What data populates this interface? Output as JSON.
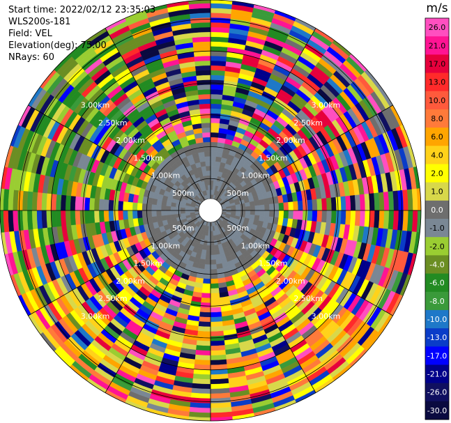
{
  "header": {
    "start_time": "Start time: 2022/02/12 23:35:03",
    "instrument": "WLS200s-181",
    "field": "Field: VEL",
    "elevation": "Elevation(deg): 75.00",
    "nrays": "NRays: 60"
  },
  "chart_data": {
    "type": "heatmap",
    "projection": "polar",
    "field": "VEL",
    "units": "m/s",
    "nrays": 60,
    "range_rings": [
      {
        "range_m": 500,
        "label": "500m"
      },
      {
        "range_m": 1000,
        "label": "1.00km"
      },
      {
        "range_m": 1500,
        "label": "1.50km"
      },
      {
        "range_m": 2000,
        "label": "2.00km"
      },
      {
        "range_m": 2500,
        "label": "2.50km"
      },
      {
        "range_m": 3000,
        "label": "3.00km"
      }
    ],
    "max_range_m": 3300,
    "blind_zone_m": 100,
    "spoke_angles_deg": [
      0,
      30,
      60,
      90,
      120,
      150,
      180,
      210,
      240,
      270,
      300,
      330
    ],
    "colorbar": {
      "title": "m/s",
      "ticks": [
        "26.0",
        "21.0",
        "17.0",
        "13.0",
        "10.0",
        "8.0",
        "6.0",
        "4.0",
        "2.0",
        "1.0",
        "0.0",
        "-1.0",
        "-2.0",
        "-4.0",
        "-6.0",
        "-8.0",
        "-10.0",
        "-13.0",
        "-17.0",
        "-21.0",
        "-26.0",
        "-30.0"
      ],
      "colors": [
        "#ff4fc0",
        "#ff1493",
        "#e6003c",
        "#ff2a2a",
        "#ff5a3c",
        "#ff7a3a",
        "#ffa500",
        "#ffd21a",
        "#ffff00",
        "#d8d84a",
        "#6e6e6e",
        "#7a8794",
        "#9acd32",
        "#6b8e23",
        "#228b22",
        "#3a9a3a",
        "#1e78c8",
        "#0a3cc8",
        "#0000ff",
        "#00008b",
        "#101060",
        "#0a0a40"
      ]
    },
    "field_structure": {
      "inner_calm_range_m": 1050,
      "inner_calm_values_ms": [
        0.0,
        -1.0
      ],
      "outer_noise_range_m": [
        1050,
        3300
      ]
    }
  }
}
